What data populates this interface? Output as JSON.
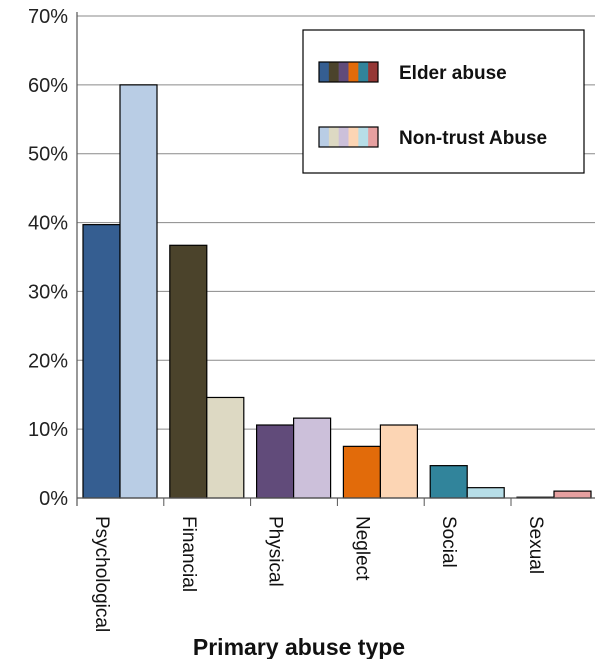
{
  "chart_data": {
    "type": "bar",
    "title": "",
    "xlabel": "Primary abuse type",
    "ylabel": "",
    "ylim": [
      0,
      70
    ],
    "yticks": [
      "0%",
      "10%",
      "20%",
      "30%",
      "40%",
      "50%",
      "60%",
      "70%"
    ],
    "grid": "horizontal",
    "legend_position": "top-right",
    "categories": [
      "Psychological",
      "Financial",
      "Physical",
      "Neglect",
      "Social",
      "Sexual"
    ],
    "series": [
      {
        "name": "Elder abuse",
        "values": [
          39.7,
          36.7,
          10.6,
          7.5,
          4.7,
          0.1
        ],
        "colors": [
          "#355e91",
          "#4b432b",
          "#614b7a",
          "#e26b0a",
          "#31849b",
          "#953735"
        ]
      },
      {
        "name": "Non-trust Abuse",
        "values": [
          60.0,
          14.6,
          11.6,
          10.6,
          1.5,
          1.0
        ],
        "colors": [
          "#b9cde5",
          "#ddd9c3",
          "#ccc0da",
          "#fcd5b4",
          "#b7dee8",
          "#e6a0a0"
        ]
      }
    ]
  }
}
